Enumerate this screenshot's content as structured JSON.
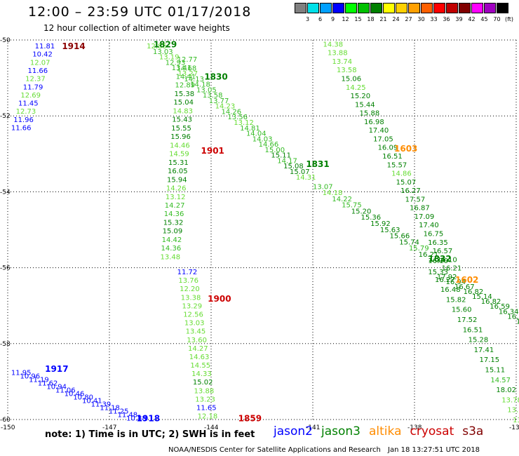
{
  "header": {
    "title": "12:00 – 23:59 UTC 01/17/2018",
    "subtitle": "12 hour collection of altimeter wave heights"
  },
  "scale": {
    "unit": "(ft)",
    "swatches": [
      {
        "color": "#808080",
        "label": ""
      },
      {
        "color": "#00e0e8",
        "label": "3"
      },
      {
        "color": "#00a0ff",
        "label": "6"
      },
      {
        "color": "#0000ff",
        "label": "9"
      },
      {
        "color": "#00ff00",
        "label": "12"
      },
      {
        "color": "#00c000",
        "label": "15"
      },
      {
        "color": "#008000",
        "label": "18"
      },
      {
        "color": "#ffff00",
        "label": "21"
      },
      {
        "color": "#ffd000",
        "label": "24"
      },
      {
        "color": "#ffa000",
        "label": "27"
      },
      {
        "color": "#ff6000",
        "label": "30"
      },
      {
        "color": "#ff0000",
        "label": "33"
      },
      {
        "color": "#c00000",
        "label": "36"
      },
      {
        "color": "#800000",
        "label": "39"
      },
      {
        "color": "#ff00ff",
        "label": "42"
      },
      {
        "color": "#a000c0",
        "label": "45"
      },
      {
        "color": "#000000",
        "label": "70"
      }
    ]
  },
  "map": {
    "lon_range": [
      -150,
      -135
    ],
    "lat_range": [
      -60,
      -50
    ],
    "lat_ticks": [
      "-50",
      "-52",
      "-54",
      "-56",
      "-58",
      "-60"
    ],
    "lon_ticks": [
      "-150",
      "-147",
      "-144",
      "-141",
      "-138",
      "-135"
    ],
    "grid": "dotted"
  },
  "satellites": {
    "jason2": "#0000ff",
    "jason3": "#008000",
    "altika": "#ff8c00",
    "cryosat": "#cc0000",
    "s3a": "#800000"
  },
  "tracks": [
    {
      "sat": "s3a",
      "time": "1914",
      "color": "#8b0000",
      "lon": -148.4,
      "lat": -50.15
    },
    {
      "sat": "jason3",
      "time": "1829",
      "color": "#008000",
      "lon": -145.7,
      "lat": -50.1
    },
    {
      "sat": "jason3",
      "time": "1830",
      "color": "#008000",
      "lon": -144.2,
      "lat": -50.95
    },
    {
      "sat": "cryosat",
      "time": "1901",
      "color": "#cc0000",
      "lon": -144.3,
      "lat": -52.9
    },
    {
      "sat": "jason3",
      "time": "1831",
      "color": "#008000",
      "lon": -141.2,
      "lat": -53.25
    },
    {
      "sat": "altika",
      "time": "1603",
      "color": "#ff8c00",
      "lon": -138.6,
      "lat": -52.85
    },
    {
      "sat": "jason3",
      "time": "1832",
      "color": "#008000",
      "lon": -137.6,
      "lat": -55.75
    },
    {
      "sat": "altika",
      "time": "1602",
      "color": "#ff8c00",
      "lon": -136.8,
      "lat": -56.3
    },
    {
      "sat": "cryosat",
      "time": "1900",
      "color": "#cc0000",
      "lon": -144.1,
      "lat": -56.8
    },
    {
      "sat": "jason2",
      "time": "1917",
      "color": "#0000ff",
      "lon": -148.9,
      "lat": -58.65
    },
    {
      "sat": "jason2",
      "time": "1918",
      "color": "#0000ff",
      "lon": -146.2,
      "lat": -59.95
    },
    {
      "sat": "cryosat",
      "time": "1859",
      "color": "#cc0000",
      "lon": -143.2,
      "lat": -59.95
    }
  ],
  "track_lines": [
    {
      "name": "jason2-north",
      "color": "#0000ff",
      "start": [
        -149.2,
        -50.15
      ],
      "end": [
        -149.9,
        -52.3
      ],
      "values": [
        "11.81",
        "10.42",
        "12.07",
        "11.66",
        "12.37",
        "11.79",
        "12.69",
        "11.45",
        "12.73",
        "11.96",
        "11.66"
      ],
      "colors": [
        "#0000ff",
        "#0000ff",
        "#66dd33",
        "#0000ff",
        "#66dd33",
        "#0000ff",
        "#66dd33",
        "#0000ff",
        "#66dd33",
        "#0000ff",
        "#0000ff"
      ]
    },
    {
      "name": "jason3-1829-track",
      "color": "#00b000",
      "start": [
        -145.9,
        -50.15
      ],
      "end": [
        -141.5,
        -53.6
      ],
      "values": [
        "12.86",
        "13.03",
        "13.19",
        "12.93",
        "13.41",
        "13.27",
        "14.13",
        "14.18",
        "13.05",
        "13.58",
        "13.77",
        "14.23",
        "14.26",
        "13.56",
        "13.12",
        "14.81",
        "14.04",
        "14.03",
        "14.66",
        "15.00",
        "15.11",
        "14.17",
        "15.08",
        "15.07",
        "14.31"
      ],
      "colors": [
        "#66dd33",
        "#33bb22",
        "#66dd33",
        "#33bb22",
        "#33bb22",
        "#66dd33",
        "#33bb22",
        "#33bb22",
        "#33bb22",
        "#33bb22",
        "#33bb22",
        "#66dd33",
        "#33bb22",
        "#33bb22",
        "#66dd33",
        "#33bb22",
        "#33bb22",
        "#33bb22",
        "#33bb22",
        "#33bb22",
        "#008000",
        "#33bb22",
        "#008000",
        "#008000",
        "#66dd33"
      ]
    },
    {
      "name": "jason3-1830-track",
      "color": "#00b000",
      "start": [
        -141.0,
        -53.85
      ],
      "end": [
        -137.6,
        -55.8
      ],
      "values": [
        "13.07",
        "14.18",
        "14.22",
        "15.75",
        "15.20",
        "15.36",
        "15.92",
        "15.63",
        "15.66",
        "15.74",
        "15.79",
        "16.21",
        "16.10"
      ],
      "colors": [
        "#33bb22",
        "#66dd33",
        "#33bb22",
        "#33bb22",
        "#008000",
        "#008000",
        "#008000",
        "#008000",
        "#008000",
        "#008000",
        "#33bb22",
        "#008000",
        "#008000"
      ]
    },
    {
      "name": "cryosat-1901-track",
      "color": "#66dd33",
      "start": [
        -145.0,
        -50.5
      ],
      "end": [
        -145.5,
        -55.7
      ],
      "values": [
        "12.77",
        "14.68",
        "14.41",
        "12.89",
        "15.38",
        "15.04",
        "14.83",
        "15.43",
        "15.55",
        "15.96",
        "14.46",
        "14.59",
        "15.31",
        "16.05",
        "15.94",
        "14.26",
        "13.12",
        "14.27",
        "14.36",
        "15.32",
        "15.09",
        "14.42",
        "14.36",
        "13.48"
      ],
      "colors": [
        "#33bb22",
        "#33bb22",
        "#33bb22",
        "#33bb22",
        "#008000",
        "#008000",
        "#66dd33",
        "#008000",
        "#008000",
        "#008000",
        "#66dd33",
        "#66dd33",
        "#008000",
        "#008000",
        "#008000",
        "#66dd33",
        "#66dd33",
        "#33bb22",
        "#33bb22",
        "#008000",
        "#008000",
        "#33bb22",
        "#33bb22",
        "#66dd33"
      ]
    },
    {
      "name": "cryosat-1900-track",
      "color": "#66dd33",
      "start": [
        -145.0,
        -56.1
      ],
      "end": [
        -144.4,
        -59.9
      ],
      "values": [
        "11.72",
        "13.76",
        "12.20",
        "13.38",
        "13.29",
        "12.56",
        "13.03",
        "13.45",
        "13.60",
        "14.27",
        "14.63",
        "14.55",
        "14.33",
        "15.02",
        "13.88",
        "13.23",
        "11.65",
        "12.18"
      ],
      "colors": [
        "#0000ff",
        "#66dd33",
        "#66dd33",
        "#66dd33",
        "#66dd33",
        "#66dd33",
        "#66dd33",
        "#66dd33",
        "#66dd33",
        "#66dd33",
        "#66dd33",
        "#66dd33",
        "#66dd33",
        "#008000",
        "#66dd33",
        "#66dd33",
        "#0000ff",
        "#66dd33"
      ]
    },
    {
      "name": "altika-1603-track",
      "color": "#33bb22",
      "start": [
        -140.7,
        -50.1
      ],
      "end": [
        -137.2,
        -56.0
      ],
      "values": [
        "14.38",
        "13.88",
        "13.74",
        "13.58",
        "15.06",
        "14.25",
        "15.20",
        "15.44",
        "15.88",
        "16.98",
        "17.40",
        "17.05",
        "16.09",
        "16.51",
        "15.57",
        "14.86",
        "15.07",
        "16.27",
        "17.57",
        "16.87",
        "17.09",
        "17.40",
        "16.75",
        "16.35",
        "16.57",
        "16.10",
        "16.21"
      ],
      "colors": [
        "#66dd33",
        "#66dd33",
        "#66dd33",
        "#66dd33",
        "#008000",
        "#66dd33",
        "#008000",
        "#008000",
        "#008000",
        "#008000",
        "#008000",
        "#008000",
        "#008000",
        "#008000",
        "#008000",
        "#66dd33",
        "#008000",
        "#008000",
        "#008000",
        "#008000",
        "#008000",
        "#008000",
        "#008000",
        "#008000",
        "#008000",
        "#008000",
        "#008000"
      ]
    },
    {
      "name": "altika-1602-track",
      "color": "#33bb22",
      "start": [
        -137.4,
        -56.3
      ],
      "end": [
        -135.1,
        -60.0
      ],
      "values": [
        "16.27",
        "16.48",
        "15.82",
        "15.60",
        "17.52",
        "16.51",
        "15.28",
        "17.41",
        "17.15",
        "15.11",
        "14.57",
        "18.02",
        "13.78",
        "13.77",
        "13.60"
      ],
      "colors": [
        "#008000",
        "#008000",
        "#008000",
        "#008000",
        "#008000",
        "#008000",
        "#008000",
        "#008000",
        "#008000",
        "#008000",
        "#33bb22",
        "#008000",
        "#66dd33",
        "#66dd33",
        "#66dd33"
      ]
    },
    {
      "name": "jason3-1832-track",
      "color": "#00b000",
      "start": [
        -137.6,
        -56.1
      ],
      "end": [
        -135.0,
        -57.4
      ],
      "values": [
        "15.33",
        "17.92",
        "16.94",
        "16.67",
        "16.82",
        "15.14",
        "16.82",
        "16.59",
        "16.34",
        "16.82",
        "17.77"
      ],
      "colors": [
        "#008000",
        "#008000",
        "#008000",
        "#008000",
        "#008000",
        "#008000",
        "#008000",
        "#008000",
        "#008000",
        "#008000",
        "#008000"
      ]
    },
    {
      "name": "jason2-south",
      "color": "#0000ff",
      "start": [
        -149.9,
        -58.75
      ],
      "end": [
        -146.5,
        -59.95
      ],
      "values": [
        "11.95",
        "10.96",
        "11.19",
        "11.62",
        "10.94",
        "11.06",
        "10.46",
        "10.80",
        "10.41",
        "11.39",
        "11.18",
        "11.25",
        "11.48",
        "10.88"
      ],
      "colors": [
        "#0000ff",
        "#0000ff",
        "#0000ff",
        "#0000ff",
        "#0000ff",
        "#0000ff",
        "#0000ff",
        "#0000ff",
        "#0000ff",
        "#0000ff",
        "#0000ff",
        "#0000ff",
        "#0000ff",
        "#0000ff"
      ]
    }
  ],
  "footer": {
    "note": "note: 1) Time is in UTC; 2) SWH is in feet",
    "legend": [
      {
        "name": "jason2",
        "color": "#0000ff"
      },
      {
        "name": "jason3",
        "color": "#008000"
      },
      {
        "name": "altika",
        "color": "#ff8c00"
      },
      {
        "name": "cryosat",
        "color": "#cc0000"
      },
      {
        "name": "s3a",
        "color": "#800000"
      }
    ],
    "credit": "NOAA/NESDIS Center for Satellite Applications and Research",
    "stamp": "Jan 18 13:27:51 UTC 2018"
  }
}
